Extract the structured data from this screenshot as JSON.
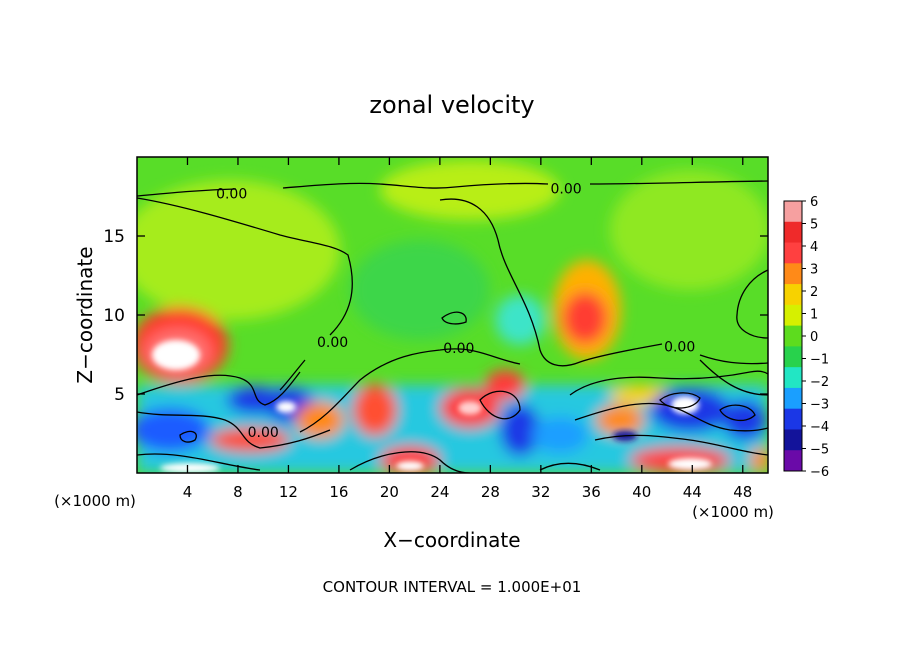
{
  "chart_data": {
    "type": "heatmap",
    "title": "zonal velocity",
    "xlabel": "X−coordinate",
    "ylabel": "Z−coordinate",
    "x_unit_left": "(×1000 m)",
    "x_unit_right": "(×1000 m)",
    "xlim": [
      0,
      50
    ],
    "ylim": [
      0,
      20
    ],
    "x_ticks": [
      4,
      8,
      12,
      16,
      20,
      24,
      28,
      32,
      36,
      40,
      44,
      48
    ],
    "y_ticks": [
      5,
      10,
      15
    ],
    "colorbar": {
      "levels": [
        6,
        5,
        4,
        3,
        2,
        1,
        0,
        -1,
        -2,
        -3,
        -4,
        -5,
        -6
      ],
      "labels": [
        "6",
        "5",
        "4",
        "3",
        "2",
        "1",
        "0",
        "−1",
        "−2",
        "−3",
        "−4",
        "−5",
        "−6"
      ],
      "colors": [
        "#f6a0a0",
        "#ef2a2a",
        "#ff4040",
        "#ff8a18",
        "#f7d200",
        "#d6f000",
        "#5ddc1e",
        "#28d24c",
        "#22e6c4",
        "#1a9fff",
        "#1b37e6",
        "#13139a",
        "#6a0aa8"
      ]
    },
    "contour_labels": [
      {
        "text": "0.00",
        "x": 7.5,
        "y": 17.7
      },
      {
        "text": "0.00",
        "x": 34.0,
        "y": 18.0
      },
      {
        "text": "0.00",
        "x": 15.5,
        "y": 8.3
      },
      {
        "text": "0.00",
        "x": 25.5,
        "y": 7.9
      },
      {
        "text": "0.00",
        "x": 43.0,
        "y": 8.0
      },
      {
        "text": "0.00",
        "x": 10.0,
        "y": 2.6
      }
    ],
    "footer": "CONTOUR INTERVAL = 1.000E+01"
  }
}
